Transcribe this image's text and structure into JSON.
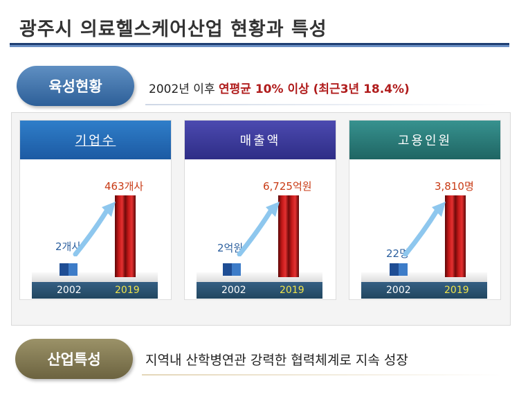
{
  "title": "광주시 의료헬스케어산업 현황과 특성",
  "growth": {
    "pill_label": "육성현황",
    "summary_prefix": "2002년 이후 ",
    "summary_highlight": "연평균 10% 이상 (최근3년 18.4%)"
  },
  "cards": [
    {
      "header": "기업수",
      "start_value": "2개사",
      "end_value": "463개사",
      "start_year": "2002",
      "end_year": "2019"
    },
    {
      "header": "매출액",
      "start_value": "2억원",
      "end_value": "6,725억원",
      "start_year": "2002",
      "end_year": "2019"
    },
    {
      "header": "고용인원",
      "start_value": "22명",
      "end_value": "3,810명",
      "start_year": "2002",
      "end_year": "2019"
    }
  ],
  "features": {
    "pill_label": "산업특성",
    "text": "지역내 산학병연관 강력한 협력체계로 지속 성장"
  },
  "colors": {
    "title_line": "#1f3f73",
    "pill_blue": "#2d5f98",
    "pill_olive": "#6c6340",
    "highlight_red": "#b01c1c",
    "bar_red": "#c21818",
    "card_header_blue": "#1c5aa3",
    "card_header_purple": "#2e2d86",
    "card_header_teal": "#1f6563",
    "year_end_yellow": "#f0e44a"
  }
}
